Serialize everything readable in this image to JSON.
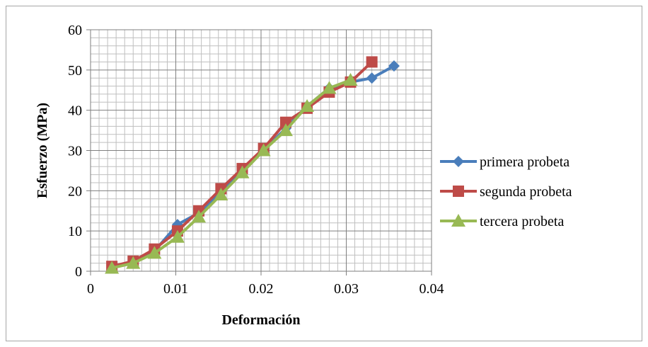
{
  "chart_data": {
    "type": "line",
    "title": "",
    "xlabel": "Deformación",
    "ylabel": "Esfuerzo (MPa)",
    "xlim": [
      0,
      0.04
    ],
    "ylim": [
      0,
      60
    ],
    "x_ticks": [
      0,
      0.01,
      0.02,
      0.03,
      0.04
    ],
    "x_tick_labels": [
      "0",
      "0.01",
      "0.02",
      "0.03",
      "0.04"
    ],
    "y_ticks": [
      0,
      10,
      20,
      30,
      40,
      50,
      60
    ],
    "y_tick_labels": [
      "0",
      "10",
      "20",
      "30",
      "40",
      "50",
      "60"
    ],
    "grid": true,
    "legend_position": "right",
    "series": [
      {
        "name": "primera probeta",
        "color": "#4a7ebb",
        "marker": "diamond",
        "x": [
          0.0025,
          0.005,
          0.0075,
          0.0102,
          0.0127,
          0.0153,
          0.0178,
          0.0203,
          0.0229,
          0.0254,
          0.028,
          0.0305,
          0.033,
          0.0356
        ],
        "y": [
          1,
          2.2,
          5,
          11.6,
          14.5,
          19.5,
          25,
          30,
          35.5,
          41,
          45.5,
          47,
          48,
          51
        ]
      },
      {
        "name": "segunda probeta",
        "color": "#be4b48",
        "marker": "square",
        "x": [
          0.0025,
          0.005,
          0.0075,
          0.0102,
          0.0127,
          0.0153,
          0.0178,
          0.0203,
          0.0229,
          0.0254,
          0.028,
          0.0305,
          0.033
        ],
        "y": [
          1.2,
          2.5,
          5.5,
          10,
          15,
          20.5,
          25.5,
          30.5,
          37,
          40.5,
          44.5,
          47,
          52
        ]
      },
      {
        "name": "tercera probeta",
        "color": "#98b954",
        "marker": "triangle",
        "x": [
          0.0025,
          0.005,
          0.0075,
          0.0102,
          0.0127,
          0.0153,
          0.0178,
          0.0203,
          0.0229,
          0.0254,
          0.028,
          0.0305
        ],
        "y": [
          0.8,
          2,
          4.5,
          8.5,
          13.5,
          19,
          24.5,
          30,
          35,
          41,
          45.5,
          47.5
        ]
      }
    ]
  }
}
